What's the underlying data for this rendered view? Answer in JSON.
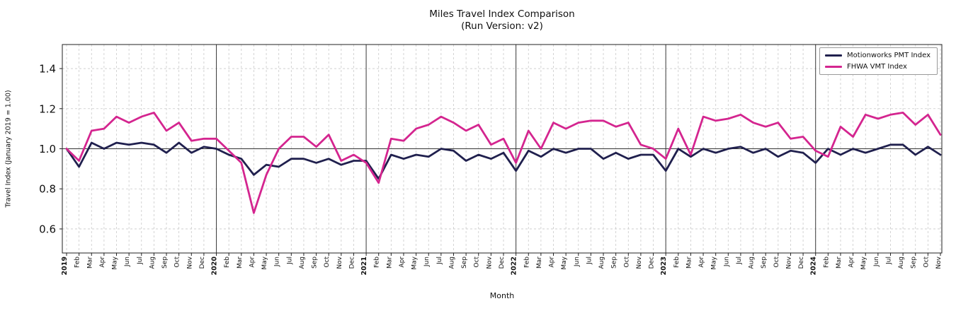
{
  "chart_data": {
    "type": "line",
    "title": "Miles Travel Index Comparison",
    "subtitle": "(Run Version: v2)",
    "xlabel": "Month",
    "ylabel": "Travel Index (January 2019 = 1.00)",
    "ylim": [
      0.48,
      1.52
    ],
    "yticks": [
      0.6,
      0.8,
      1.0,
      1.2,
      1.4
    ],
    "reference_line": 1.0,
    "grid": true,
    "legend_position": "upper right",
    "year_boundary_indices": [
      12,
      24,
      36,
      48,
      60
    ],
    "x_labels": [
      "2019",
      "Feb",
      "Mar",
      "Apr",
      "May",
      "Jun",
      "Jul",
      "Aug",
      "Sep",
      "Oct",
      "Nov",
      "Dec",
      "2020",
      "Feb",
      "Mar",
      "Apr",
      "May",
      "Jun",
      "Jul",
      "Aug",
      "Sep",
      "Oct",
      "Nov",
      "Dec",
      "2021",
      "Feb",
      "Mar",
      "Apr",
      "May",
      "Jun",
      "Jul",
      "Aug",
      "Sep",
      "Oct",
      "Nov",
      "Dec",
      "2022",
      "Feb",
      "Mar",
      "Apr",
      "May",
      "Jun",
      "Jul",
      "Aug",
      "Sep",
      "Oct",
      "Nov",
      "Dec",
      "2023",
      "Feb",
      "Mar",
      "Apr",
      "May",
      "Jun",
      "Jul",
      "Aug",
      "Sep",
      "Oct",
      "Nov",
      "Dec",
      "2024",
      "Feb",
      "Mar",
      "Apr",
      "May",
      "Jun",
      "Jul",
      "Aug",
      "Sep",
      "Oct",
      "Nov"
    ],
    "series": [
      {
        "name": "Motionworks PMT Index",
        "color": "#20204e",
        "values": [
          1.0,
          0.91,
          1.03,
          1.0,
          1.03,
          1.02,
          1.03,
          1.02,
          0.98,
          1.03,
          0.98,
          1.01,
          1.0,
          0.97,
          0.95,
          0.87,
          0.92,
          0.91,
          0.95,
          0.95,
          0.93,
          0.95,
          0.92,
          0.94,
          0.94,
          0.85,
          0.97,
          0.95,
          0.97,
          0.96,
          1.0,
          0.99,
          0.94,
          0.97,
          0.95,
          0.98,
          0.89,
          0.99,
          0.96,
          1.0,
          0.98,
          1.0,
          1.0,
          0.95,
          0.98,
          0.95,
          0.97,
          0.97,
          0.89,
          1.0,
          0.96,
          1.0,
          0.98,
          1.0,
          1.01,
          0.98,
          1.0,
          0.96,
          0.99,
          0.98,
          0.93,
          1.0,
          0.97,
          1.0,
          0.98,
          1.0,
          1.02,
          1.02,
          0.97,
          1.01,
          0.97
        ]
      },
      {
        "name": "FHWA VMT Index",
        "color": "#d4258f",
        "values": [
          1.0,
          0.94,
          1.09,
          1.1,
          1.16,
          1.13,
          1.16,
          1.18,
          1.09,
          1.13,
          1.04,
          1.05,
          1.05,
          0.99,
          0.93,
          0.68,
          0.87,
          1.0,
          1.06,
          1.06,
          1.01,
          1.07,
          0.94,
          0.97,
          0.93,
          0.83,
          1.05,
          1.04,
          1.1,
          1.12,
          1.16,
          1.13,
          1.09,
          1.12,
          1.02,
          1.05,
          0.93,
          1.09,
          1.0,
          1.13,
          1.1,
          1.13,
          1.14,
          1.14,
          1.11,
          1.13,
          1.02,
          1.0,
          0.95,
          1.1,
          0.97,
          1.16,
          1.14,
          1.15,
          1.17,
          1.13,
          1.11,
          1.13,
          1.05,
          1.06,
          0.99,
          0.96,
          1.11,
          1.06,
          1.17,
          1.15,
          1.17,
          1.18,
          1.12,
          1.17,
          1.07
        ]
      }
    ]
  }
}
